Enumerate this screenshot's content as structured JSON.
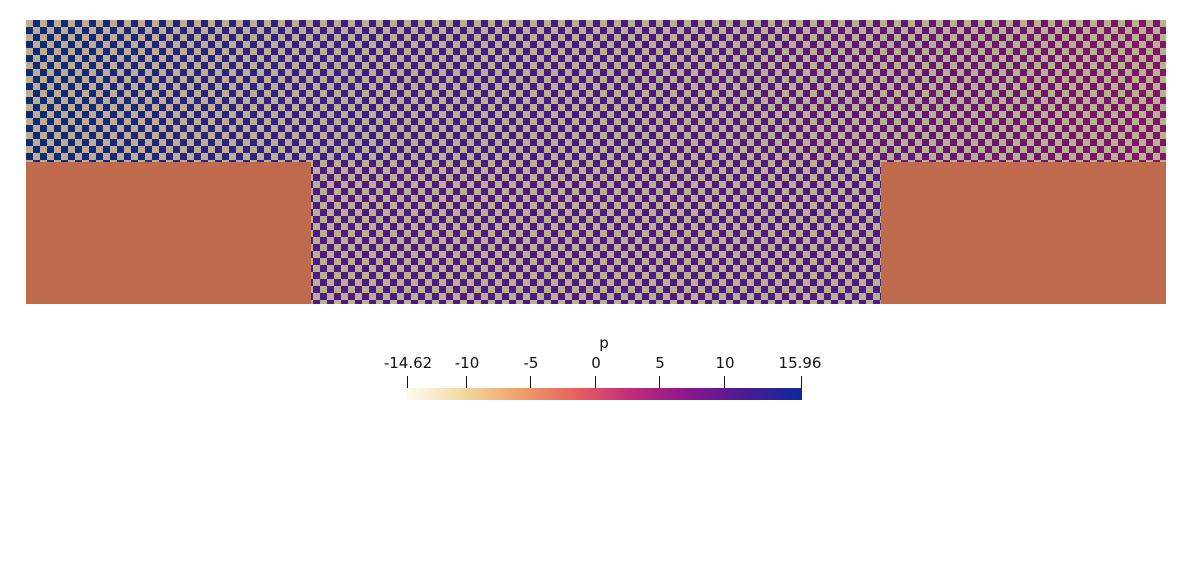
{
  "visualization": {
    "domain_colors": {
      "light_cell": "#bcae92",
      "solid_region": "#c06a4d",
      "left_top": "#0c2a78",
      "mid": "#4a1a82",
      "right_top": "#7a1565"
    }
  },
  "colorbar": {
    "title": "p",
    "ticks": [
      {
        "label": "-14.62",
        "value": -14.62
      },
      {
        "label": "-10",
        "value": -10
      },
      {
        "label": "-5",
        "value": -5
      },
      {
        "label": "0",
        "value": 0
      },
      {
        "label": "5",
        "value": 5
      },
      {
        "label": "10",
        "value": 10
      },
      {
        "label": "15.96",
        "value": 15.96
      }
    ],
    "range": [
      -14.62,
      15.96
    ],
    "colormap_stops": [
      "#fdfbee",
      "#f3d89f",
      "#f0a06a",
      "#e8605e",
      "#c02a7a",
      "#8a168e",
      "#4a1c96",
      "#0c2a9a"
    ]
  }
}
